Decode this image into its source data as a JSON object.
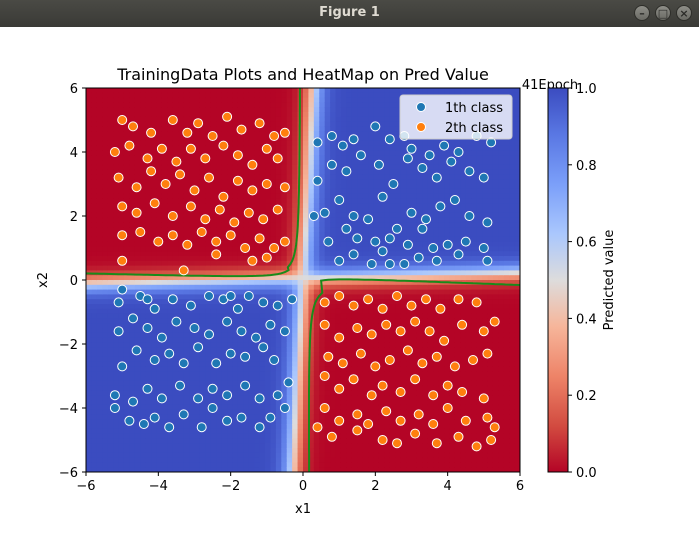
{
  "window": {
    "title": "Figure 1",
    "buttons": [
      "minimize",
      "maximize",
      "close"
    ]
  },
  "chart_data": {
    "type": "heatmap",
    "title": "TrainingData Plots and HeatMap on Pred Value",
    "epoch_label": "41Epoch",
    "xlabel": "x1",
    "ylabel": "x2",
    "xlim": [
      -6,
      6
    ],
    "ylim": [
      -6,
      6
    ],
    "xticks": [
      -6,
      -4,
      -2,
      0,
      2,
      4,
      6
    ],
    "yticks": [
      -6,
      -4,
      -2,
      0,
      2,
      4,
      6
    ],
    "xtick_labels": [
      "−6",
      "−4",
      "−2",
      "0",
      "2",
      "4",
      "6"
    ],
    "ytick_labels": [
      "−6",
      "−4",
      "−2",
      "0",
      "2",
      "4",
      "6"
    ],
    "legend_position": "top-right",
    "legend": [
      {
        "label": "1th class",
        "color": "#1f77b4"
      },
      {
        "label": "2th class",
        "color": "#ff7f0e"
      }
    ],
    "colorbar": {
      "label": "Predicted value",
      "range": [
        0.0,
        1.0
      ],
      "ticks": [
        0.0,
        0.2,
        0.4,
        0.6,
        0.8,
        1.0
      ],
      "tick_labels": [
        "0.0",
        "0.2",
        "0.4",
        "0.6",
        "0.8",
        "1.0"
      ],
      "colormap": "coolwarm_r"
    },
    "decision_boundary_color": "#1a8a1a",
    "marker_edge_color": "#ffffff",
    "series": [
      {
        "name": "1th class",
        "color": "#1f77b4",
        "points": [
          [
            0.4,
            4.3
          ],
          [
            0.8,
            4.5
          ],
          [
            1.1,
            4.2
          ],
          [
            1.4,
            4.4
          ],
          [
            2.0,
            4.8
          ],
          [
            2.4,
            4.4
          ],
          [
            2.8,
            4.5
          ],
          [
            3.0,
            4.1
          ],
          [
            3.5,
            3.9
          ],
          [
            3.9,
            4.2
          ],
          [
            4.3,
            4.0
          ],
          [
            4.8,
            4.5
          ],
          [
            5.2,
            4.3
          ],
          [
            0.4,
            3.1
          ],
          [
            0.8,
            3.6
          ],
          [
            1.2,
            3.4
          ],
          [
            1.6,
            3.9
          ],
          [
            2.1,
            3.6
          ],
          [
            2.5,
            3.0
          ],
          [
            2.9,
            3.8
          ],
          [
            3.3,
            3.5
          ],
          [
            3.7,
            3.2
          ],
          [
            4.1,
            3.7
          ],
          [
            4.6,
            3.4
          ],
          [
            5.0,
            3.2
          ],
          [
            0.3,
            2.0
          ],
          [
            0.6,
            2.1
          ],
          [
            1.0,
            2.5
          ],
          [
            1.4,
            2.0
          ],
          [
            1.8,
            1.9
          ],
          [
            2.2,
            2.6
          ],
          [
            2.6,
            1.6
          ],
          [
            3.0,
            2.1
          ],
          [
            3.4,
            1.9
          ],
          [
            3.8,
            2.3
          ],
          [
            4.2,
            2.5
          ],
          [
            4.6,
            2.0
          ],
          [
            5.1,
            1.8
          ],
          [
            0.7,
            1.2
          ],
          [
            1.2,
            1.6
          ],
          [
            1.5,
            1.3
          ],
          [
            2.0,
            1.2
          ],
          [
            2.4,
            1.3
          ],
          [
            2.9,
            1.1
          ],
          [
            3.3,
            1.6
          ],
          [
            3.6,
            1.0
          ],
          [
            4.0,
            1.1
          ],
          [
            4.5,
            1.2
          ],
          [
            5.0,
            1.0
          ],
          [
            1.0,
            0.6
          ],
          [
            1.4,
            0.8
          ],
          [
            1.9,
            0.5
          ],
          [
            2.4,
            0.5
          ],
          [
            2.8,
            0.5
          ],
          [
            3.2,
            0.7
          ],
          [
            3.7,
            0.6
          ],
          [
            4.3,
            0.8
          ],
          [
            5.1,
            0.6
          ],
          [
            2.2,
            0.9
          ],
          [
            -5.2,
            -4.0
          ],
          [
            -4.8,
            -4.4
          ],
          [
            -4.4,
            -4.5
          ],
          [
            -4.1,
            -4.3
          ],
          [
            -3.7,
            -4.6
          ],
          [
            -3.3,
            -4.2
          ],
          [
            -2.8,
            -4.6
          ],
          [
            -2.5,
            -4.0
          ],
          [
            -2.1,
            -4.4
          ],
          [
            -1.7,
            -4.3
          ],
          [
            -1.2,
            -4.6
          ],
          [
            -0.9,
            -4.3
          ],
          [
            -0.5,
            -4.0
          ],
          [
            -5.2,
            -3.6
          ],
          [
            -4.7,
            -3.8
          ],
          [
            -4.3,
            -3.4
          ],
          [
            -3.9,
            -3.7
          ],
          [
            -3.4,
            -3.3
          ],
          [
            -2.9,
            -3.7
          ],
          [
            -2.5,
            -3.4
          ],
          [
            -2.1,
            -3.6
          ],
          [
            -1.6,
            -3.3
          ],
          [
            -1.2,
            -3.7
          ],
          [
            -0.7,
            -3.6
          ],
          [
            -0.4,
            -3.2
          ],
          [
            -5.0,
            -2.7
          ],
          [
            -4.6,
            -2.2
          ],
          [
            -4.1,
            -2.5
          ],
          [
            -3.7,
            -2.3
          ],
          [
            -3.3,
            -2.6
          ],
          [
            -2.9,
            -2.1
          ],
          [
            -2.4,
            -2.6
          ],
          [
            -2.0,
            -2.3
          ],
          [
            -1.6,
            -2.4
          ],
          [
            -1.1,
            -2.1
          ],
          [
            -0.8,
            -2.5
          ],
          [
            -5.1,
            -1.6
          ],
          [
            -4.7,
            -1.2
          ],
          [
            -4.3,
            -1.5
          ],
          [
            -3.9,
            -1.8
          ],
          [
            -3.5,
            -1.3
          ],
          [
            -3.0,
            -1.5
          ],
          [
            -2.6,
            -1.7
          ],
          [
            -2.1,
            -1.3
          ],
          [
            -1.7,
            -1.6
          ],
          [
            -1.3,
            -1.8
          ],
          [
            -0.9,
            -1.4
          ],
          [
            -0.5,
            -1.6
          ],
          [
            -5.1,
            -0.7
          ],
          [
            -4.5,
            -0.5
          ],
          [
            -4.1,
            -0.9
          ],
          [
            -3.6,
            -0.6
          ],
          [
            -3.1,
            -0.8
          ],
          [
            -2.6,
            -0.5
          ],
          [
            -2.2,
            -0.6
          ],
          [
            -1.8,
            -0.9
          ],
          [
            -1.5,
            -0.5
          ],
          [
            -1.1,
            -0.7
          ],
          [
            -0.7,
            -0.8
          ],
          [
            -0.3,
            -0.6
          ],
          [
            -4.3,
            -0.6
          ],
          [
            -5.0,
            -0.3
          ],
          [
            -2.0,
            -0.5
          ]
        ]
      },
      {
        "name": "2th class",
        "color": "#ff7f0e",
        "points": [
          [
            -5.0,
            5.0
          ],
          [
            -4.7,
            4.8
          ],
          [
            -4.2,
            4.6
          ],
          [
            -3.6,
            5.0
          ],
          [
            -3.2,
            4.6
          ],
          [
            -2.9,
            4.9
          ],
          [
            -2.5,
            4.5
          ],
          [
            -2.1,
            5.1
          ],
          [
            -1.7,
            4.7
          ],
          [
            -1.2,
            4.9
          ],
          [
            -0.8,
            4.5
          ],
          [
            -0.5,
            4.6
          ],
          [
            -5.2,
            4.0
          ],
          [
            -4.8,
            4.2
          ],
          [
            -4.3,
            3.8
          ],
          [
            -3.9,
            4.1
          ],
          [
            -3.5,
            3.7
          ],
          [
            -3.1,
            4.1
          ],
          [
            -2.7,
            3.8
          ],
          [
            -2.2,
            4.2
          ],
          [
            -1.8,
            3.9
          ],
          [
            -1.4,
            3.6
          ],
          [
            -1.0,
            4.1
          ],
          [
            -0.7,
            3.8
          ],
          [
            -5.1,
            3.2
          ],
          [
            -4.6,
            2.9
          ],
          [
            -4.2,
            3.4
          ],
          [
            -3.8,
            3.0
          ],
          [
            -3.4,
            3.3
          ],
          [
            -3.0,
            2.8
          ],
          [
            -2.6,
            3.2
          ],
          [
            -2.2,
            2.6
          ],
          [
            -1.8,
            3.1
          ],
          [
            -1.4,
            2.8
          ],
          [
            -1.0,
            3.0
          ],
          [
            -0.5,
            2.9
          ],
          [
            -5.0,
            2.3
          ],
          [
            -4.6,
            2.1
          ],
          [
            -4.1,
            2.4
          ],
          [
            -3.6,
            2.0
          ],
          [
            -3.1,
            2.3
          ],
          [
            -2.7,
            1.9
          ],
          [
            -2.3,
            2.2
          ],
          [
            -1.9,
            1.8
          ],
          [
            -1.5,
            2.1
          ],
          [
            -1.1,
            1.9
          ],
          [
            -0.7,
            2.2
          ],
          [
            -5.0,
            1.4
          ],
          [
            -4.5,
            1.5
          ],
          [
            -4.0,
            1.2
          ],
          [
            -3.6,
            1.4
          ],
          [
            -3.2,
            1.1
          ],
          [
            -2.8,
            1.5
          ],
          [
            -2.4,
            1.2
          ],
          [
            -2.0,
            1.4
          ],
          [
            -1.6,
            1.0
          ],
          [
            -1.2,
            1.3
          ],
          [
            -0.8,
            1.0
          ],
          [
            -0.5,
            1.2
          ],
          [
            -5.0,
            0.6
          ],
          [
            -3.3,
            0.3
          ],
          [
            -2.4,
            0.8
          ],
          [
            -1.4,
            0.6
          ],
          [
            -1.0,
            0.7
          ],
          [
            0.6,
            -0.7
          ],
          [
            1.0,
            -0.5
          ],
          [
            1.4,
            -0.8
          ],
          [
            1.8,
            -0.6
          ],
          [
            2.2,
            -0.9
          ],
          [
            2.6,
            -0.5
          ],
          [
            3.0,
            -0.8
          ],
          [
            3.4,
            -0.6
          ],
          [
            3.8,
            -0.9
          ],
          [
            4.3,
            -0.6
          ],
          [
            4.8,
            -0.7
          ],
          [
            0.6,
            -1.4
          ],
          [
            1.0,
            -1.8
          ],
          [
            1.5,
            -1.5
          ],
          [
            1.9,
            -1.7
          ],
          [
            2.3,
            -1.4
          ],
          [
            2.7,
            -1.6
          ],
          [
            3.1,
            -1.3
          ],
          [
            3.5,
            -1.6
          ],
          [
            3.9,
            -1.9
          ],
          [
            4.4,
            -1.4
          ],
          [
            5.0,
            -1.6
          ],
          [
            5.3,
            -1.3
          ],
          [
            0.7,
            -2.4
          ],
          [
            1.1,
            -2.6
          ],
          [
            1.6,
            -2.3
          ],
          [
            2.0,
            -2.7
          ],
          [
            2.4,
            -2.5
          ],
          [
            2.9,
            -2.2
          ],
          [
            3.3,
            -2.6
          ],
          [
            3.7,
            -2.4
          ],
          [
            4.2,
            -2.7
          ],
          [
            4.7,
            -2.5
          ],
          [
            5.1,
            -2.3
          ],
          [
            0.6,
            -3.0
          ],
          [
            1.0,
            -3.4
          ],
          [
            1.4,
            -3.1
          ],
          [
            1.9,
            -3.6
          ],
          [
            2.2,
            -3.3
          ],
          [
            2.7,
            -3.5
          ],
          [
            3.1,
            -3.1
          ],
          [
            3.6,
            -3.6
          ],
          [
            4.0,
            -3.3
          ],
          [
            4.4,
            -3.5
          ],
          [
            5.0,
            -3.7
          ],
          [
            0.6,
            -4.0
          ],
          [
            1.0,
            -4.4
          ],
          [
            1.5,
            -4.2
          ],
          [
            1.8,
            -4.5
          ],
          [
            2.3,
            -4.1
          ],
          [
            2.7,
            -4.4
          ],
          [
            3.2,
            -4.2
          ],
          [
            3.6,
            -4.5
          ],
          [
            4.0,
            -4.0
          ],
          [
            4.5,
            -4.4
          ],
          [
            5.1,
            -4.3
          ],
          [
            0.4,
            -4.6
          ],
          [
            0.8,
            -4.9
          ],
          [
            1.5,
            -4.7
          ],
          [
            2.2,
            -5.0
          ],
          [
            2.6,
            -5.1
          ],
          [
            3.1,
            -4.8
          ],
          [
            3.7,
            -5.1
          ],
          [
            4.3,
            -4.9
          ],
          [
            4.8,
            -5.2
          ],
          [
            5.2,
            -5.0
          ],
          [
            5.3,
            -4.6
          ]
        ]
      }
    ]
  }
}
